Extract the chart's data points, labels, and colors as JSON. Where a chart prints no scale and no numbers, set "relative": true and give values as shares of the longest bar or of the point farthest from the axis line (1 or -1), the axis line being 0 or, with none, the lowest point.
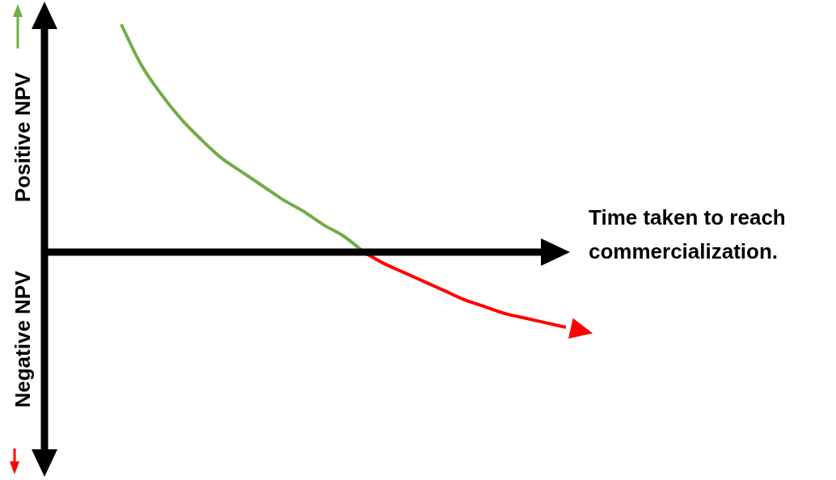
{
  "chart_data": {
    "type": "line",
    "relative": true,
    "marker": "none",
    "legend": false,
    "grid": false,
    "tick_labels": false,
    "xlabel": "Time taken to reach commercialization.",
    "annotations": [
      "Positive NPV",
      "Negative NPV"
    ],
    "categories": [
      null,
      null,
      null,
      null,
      null,
      null,
      null,
      null,
      null,
      null,
      null,
      null,
      null,
      null,
      null,
      null,
      null,
      null,
      null,
      null,
      null,
      null,
      null,
      null,
      null,
      null,
      null
    ],
    "series": [
      {
        "color": "#70ad47",
        "values": [
          null,
          null,
          null,
          null,
          1.0,
          0.82,
          0.69,
          0.58,
          0.49,
          0.41,
          0.35,
          0.29,
          0.23,
          0.18,
          0.12,
          0.07,
          0,
          null,
          null,
          null,
          null,
          null,
          null,
          null,
          null,
          null,
          null
        ]
      },
      {
        "color": "#ff0000",
        "values": [
          null,
          null,
          null,
          null,
          null,
          null,
          null,
          null,
          null,
          null,
          null,
          null,
          null,
          null,
          null,
          null,
          0,
          -0.05,
          -0.09,
          -0.13,
          -0.17,
          -0.21,
          -0.24,
          -0.27,
          -0.29,
          -0.31,
          -0.33
        ]
      }
    ]
  }
}
